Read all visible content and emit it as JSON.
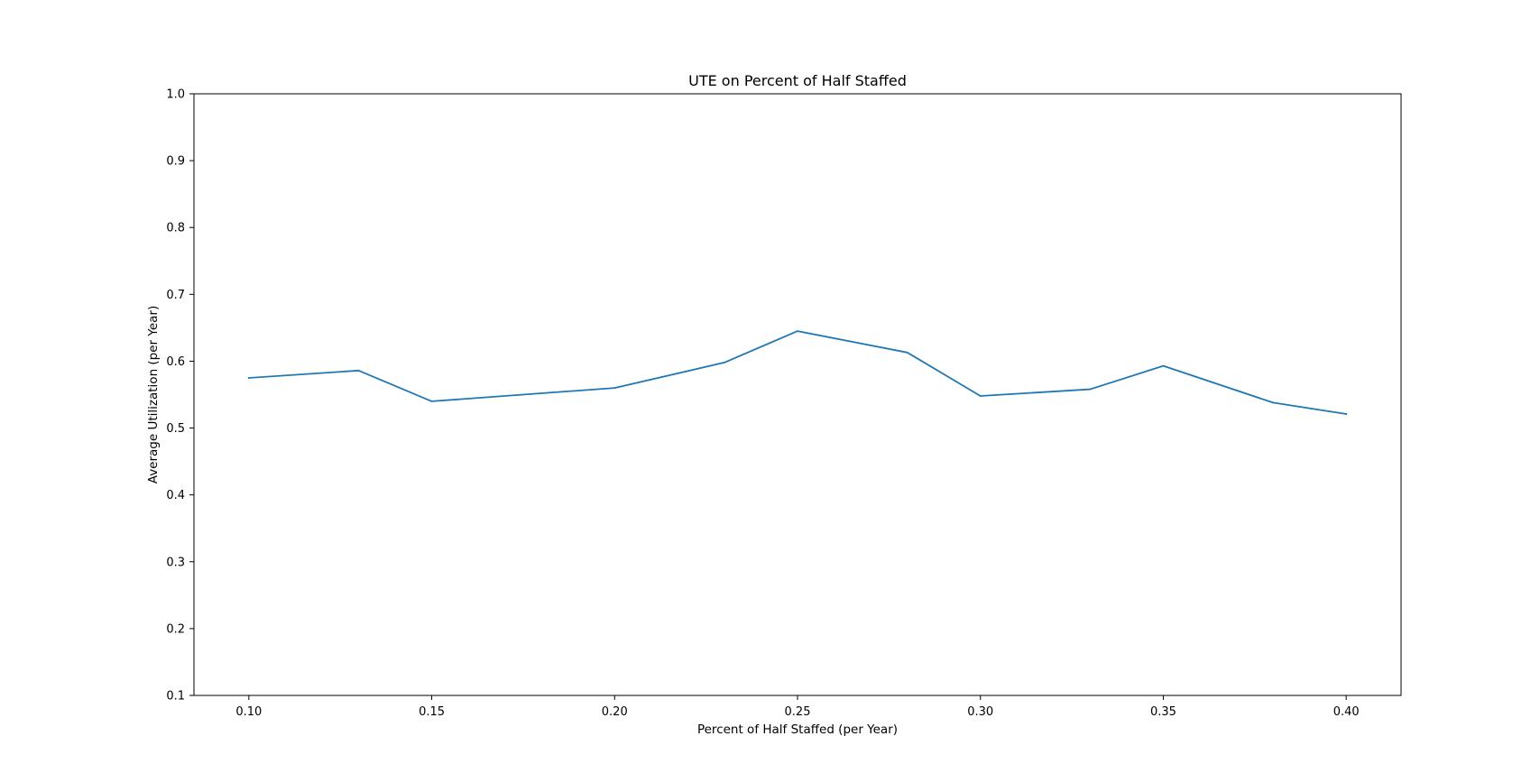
{
  "chart_data": {
    "type": "line",
    "title": "UTE on Percent of Half Staffed",
    "xlabel": "Percent of Half Staffed (per Year)",
    "ylabel": "Average Utilization (per Year)",
    "xlim": [
      0.085,
      0.415
    ],
    "ylim": [
      0.1,
      1.0
    ],
    "xticks": [
      0.1,
      0.15,
      0.2,
      0.25,
      0.3,
      0.35,
      0.4
    ],
    "xtick_labels": [
      "0.10",
      "0.15",
      "0.20",
      "0.25",
      "0.30",
      "0.35",
      "0.40"
    ],
    "yticks": [
      0.1,
      0.2,
      0.3,
      0.4,
      0.5,
      0.6,
      0.7,
      0.8,
      0.9,
      1.0
    ],
    "ytick_labels": [
      "0.1",
      "0.2",
      "0.3",
      "0.4",
      "0.5",
      "0.6",
      "0.7",
      "0.8",
      "0.9",
      "1.0"
    ],
    "grid": false,
    "series": [
      {
        "color": "#1f77b4",
        "x": [
          0.1,
          0.13,
          0.15,
          0.2,
          0.23,
          0.25,
          0.28,
          0.3,
          0.33,
          0.35,
          0.38,
          0.4
        ],
        "y": [
          0.575,
          0.586,
          0.54,
          0.56,
          0.598,
          0.645,
          0.613,
          0.548,
          0.558,
          0.593,
          0.538,
          0.521
        ]
      }
    ]
  }
}
